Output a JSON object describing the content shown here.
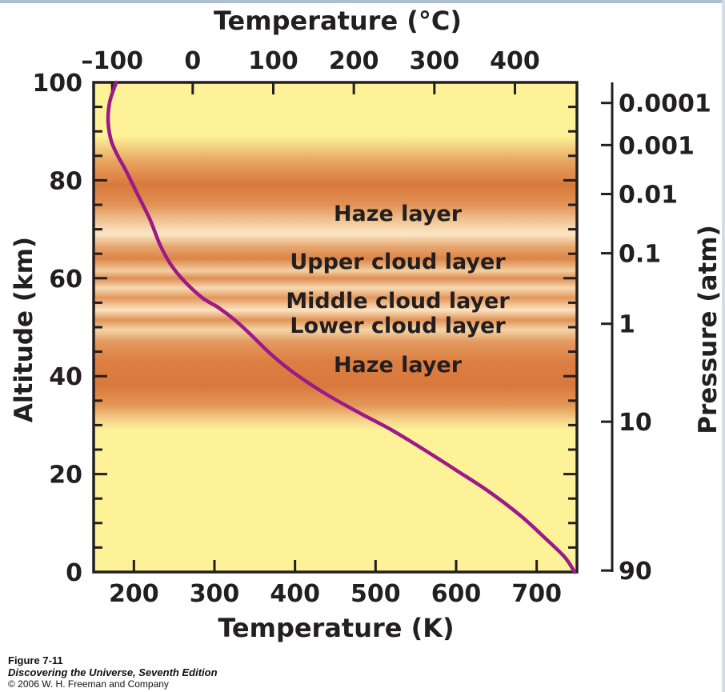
{
  "chart_data": {
    "type": "line",
    "title": "",
    "bottom_axis": {
      "label": "Temperature (K)",
      "ticks": [
        200,
        300,
        400,
        500,
        600,
        700
      ],
      "range": [
        150,
        750
      ]
    },
    "top_axis": {
      "label": "Temperature (°C)",
      "ticks": [
        "–100",
        "0",
        "100",
        "200",
        "300",
        "400"
      ],
      "tick_values": [
        -100,
        0,
        100,
        200,
        300,
        400
      ]
    },
    "left_axis": {
      "label": "Altitude (km)",
      "ticks": [
        0,
        20,
        40,
        60,
        80,
        100
      ],
      "range": [
        0,
        100
      ]
    },
    "right_axis": {
      "label": "Pressure (atm)",
      "ticks": [
        {
          "label": "0.0001",
          "altitude": 95.8
        },
        {
          "label": "0.001",
          "altitude": 87.2
        },
        {
          "label": "0.01",
          "altitude": 77.2
        },
        {
          "label": "0.1",
          "altitude": 65.1
        },
        {
          "label": "1",
          "altitude": 50.7
        },
        {
          "label": "10",
          "altitude": 30.7
        },
        {
          "label": "90",
          "altitude": 0.3
        }
      ]
    },
    "series": [
      {
        "color": "#9c1a88",
        "points": [
          [
            178,
            100
          ],
          [
            170,
            96
          ],
          [
            168,
            92
          ],
          [
            172,
            88
          ],
          [
            180,
            85
          ],
          [
            190,
            82
          ],
          [
            205,
            77
          ],
          [
            220,
            72
          ],
          [
            232,
            67
          ],
          [
            245,
            63
          ],
          [
            262,
            59.5
          ],
          [
            285,
            56
          ],
          [
            305,
            54
          ],
          [
            325,
            51.5
          ],
          [
            345,
            48.5
          ],
          [
            370,
            44.5
          ],
          [
            400,
            40.5
          ],
          [
            440,
            36.2
          ],
          [
            480,
            32.5
          ],
          [
            520,
            29
          ],
          [
            560,
            25
          ],
          [
            600,
            20.8
          ],
          [
            640,
            16.5
          ],
          [
            680,
            11.5
          ],
          [
            710,
            7
          ],
          [
            735,
            3
          ],
          [
            747,
            0
          ]
        ]
      }
    ],
    "annotations": [
      "Haze layer",
      "Upper cloud layer",
      "Middle cloud layer",
      "Lower cloud layer",
      "Haze layer"
    ],
    "background_color": "#fdf298",
    "band_color": "#d9783c"
  },
  "caption": {
    "figure": "Figure 7-11",
    "book": "Discovering the Universe, Seventh Edition",
    "copyright": "© 2006 W. H. Freeman and Company"
  }
}
